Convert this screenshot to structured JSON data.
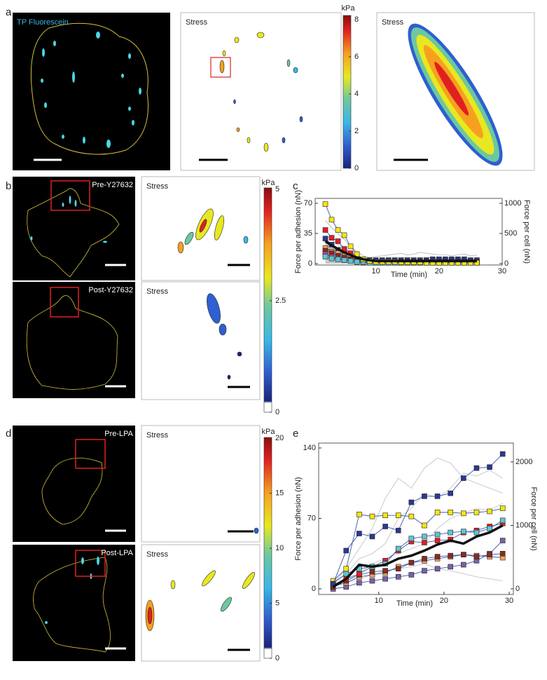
{
  "panels": {
    "labels": [
      "a",
      "b",
      "c",
      "d",
      "e"
    ],
    "a": {
      "image_label": "TP Fluorescein",
      "stress_labels": [
        "Stress",
        "Stress"
      ],
      "colorbar": {
        "unit": "kPa",
        "lim": [
          0,
          8
        ],
        "ticks": [
          0,
          2,
          4,
          6,
          8
        ]
      }
    },
    "b": {
      "image_labels": [
        "Pre-Y27632",
        "Post-Y27632"
      ],
      "stress_labels": [
        "Stress",
        "Stress"
      ],
      "colorbar": {
        "unit": "kPa",
        "lim": [
          0,
          5
        ],
        "ticks": [
          0,
          2.5,
          5
        ]
      }
    },
    "d": {
      "image_labels": [
        "Pre-LPA",
        "Post-LPA"
      ],
      "stress_labels": [
        "Stress",
        "Stress"
      ],
      "colorbar": {
        "unit": "kPa",
        "lim": [
          0,
          20
        ],
        "ticks": [
          0,
          5,
          10,
          15,
          20
        ]
      }
    }
  },
  "chart_data": [
    {
      "type": "line",
      "x_label": "Time (min)",
      "y_label": "Force per adhesion (nN)",
      "y2_label": "Force per cell (nN)",
      "x": [
        2,
        3,
        4,
        5,
        6,
        7,
        8,
        9,
        10,
        11,
        12,
        13,
        14,
        15,
        16,
        17,
        18,
        19,
        20,
        21,
        22,
        23,
        24,
        25,
        26
      ],
      "xlim": [
        0.5,
        30
      ],
      "xticks": [
        10,
        20,
        30
      ],
      "ylim": [
        0,
        70
      ],
      "yticks": [
        0,
        35,
        70
      ],
      "y2lim": [
        0,
        1000
      ],
      "y2ticks": [
        0,
        500,
        1000
      ],
      "line_color": "#3d55a8",
      "series": [
        {
          "style": "area",
          "axis": "y2",
          "color": "#c8c8c8",
          "values": [
            360,
            300,
            250,
            200,
            160,
            120,
            90,
            80,
            75,
            72,
            70,
            70,
            70,
            70,
            70,
            70,
            70,
            70,
            70,
            70,
            70,
            70,
            70,
            70,
            70
          ]
        },
        {
          "color": "#b8b8b8",
          "values": [
            50,
            42,
            35,
            28,
            20,
            14,
            9,
            7,
            8,
            9,
            10,
            11,
            12,
            10,
            11,
            13,
            12,
            11,
            10,
            10,
            9,
            10,
            11,
            9,
            10
          ]
        },
        {
          "color": "#b8b8b8",
          "values": [
            33,
            28,
            22,
            18,
            13,
            9,
            6,
            5,
            5,
            5,
            6,
            6,
            6,
            7,
            6,
            6,
            7,
            7,
            6,
            6,
            7,
            6,
            6,
            5,
            5
          ]
        },
        {
          "marker": "square",
          "color": "#2b3990",
          "values": [
            29,
            22,
            16,
            12,
            9,
            7,
            5,
            4,
            4,
            4,
            4,
            4,
            4,
            4,
            4,
            4,
            4,
            5,
            5,
            5,
            5,
            5,
            5,
            4,
            4
          ]
        },
        {
          "marker": "square",
          "color": "#e31e24",
          "values": [
            39,
            30,
            26,
            17,
            12,
            7,
            4,
            3,
            2,
            2,
            2,
            2,
            2,
            2,
            2,
            2,
            2,
            2,
            2,
            2,
            2,
            1.5,
            1.5,
            1.5,
            1.5
          ]
        },
        {
          "marker": "square",
          "color": "#f7a35c",
          "values": [
            18,
            14,
            12,
            9,
            7,
            5,
            3,
            2,
            2,
            2,
            2,
            2,
            2,
            2,
            2,
            2,
            2,
            2,
            2,
            2,
            2,
            2,
            2,
            2,
            2
          ]
        },
        {
          "marker": "square",
          "color": "#8b2b1e",
          "values": [
            15,
            12,
            9,
            7,
            5,
            4,
            3,
            2,
            2,
            2,
            2,
            2,
            2,
            2,
            2,
            2,
            2,
            2,
            2,
            2,
            2,
            2,
            2,
            2,
            2
          ]
        },
        {
          "marker": "square",
          "color": "#c2449a",
          "values": [
            11,
            8,
            6,
            4,
            3,
            2,
            1,
            1,
            1,
            1,
            1,
            1,
            1,
            1,
            1,
            1,
            1,
            1,
            1,
            1,
            1,
            1,
            1,
            1,
            1
          ]
        },
        {
          "marker": "square",
          "color": "#5cc6d0",
          "values": [
            8,
            6,
            5,
            4,
            3,
            2,
            2,
            1,
            1,
            1,
            1,
            1,
            1,
            1,
            1,
            1,
            1,
            1,
            1,
            1,
            1,
            1,
            1,
            1,
            1
          ]
        },
        {
          "marker": "square",
          "color": "#f5e50f",
          "values": [
            69,
            51,
            39,
            33,
            20,
            11,
            5,
            3,
            2,
            2,
            2,
            2,
            1.5,
            1.5,
            1.5,
            1.5,
            1,
            1,
            1,
            1,
            1,
            1,
            1,
            1,
            1
          ]
        },
        {
          "color": "#111111",
          "line_width": 3.5,
          "values": [
            26,
            21,
            17,
            13,
            10,
            7,
            5,
            4,
            3,
            3,
            3,
            3,
            3,
            3,
            3,
            3,
            3,
            3,
            3,
            3,
            3,
            3,
            3,
            3,
            3
          ]
        }
      ]
    },
    {
      "type": "line",
      "x_label": "Time (min)",
      "y_label": "Force per adhesion (nN)",
      "y2_label": "Force per cell (nN)",
      "x": [
        3,
        5,
        7,
        9,
        11,
        13,
        15,
        17,
        19,
        21,
        23,
        25,
        27,
        29
      ],
      "xlim": [
        1,
        30
      ],
      "xticks": [
        10,
        20,
        30
      ],
      "ylim": [
        0,
        140
      ],
      "yticks": [
        0,
        70,
        140
      ],
      "y2lim": [
        0,
        2220
      ],
      "y2ticks": [
        0,
        1000,
        2000
      ],
      "line_color": "#3d55a8",
      "series": [
        {
          "color": "#c4c4c4",
          "values": [
            5,
            20,
            40,
            60,
            90,
            110,
            100,
            120,
            130,
            125,
            110,
            105,
            100,
            95
          ]
        },
        {
          "color": "#c4c4c4",
          "values": [
            4,
            15,
            30,
            35,
            45,
            70,
            80,
            95,
            90,
            100,
            115,
            112,
            118,
            110
          ]
        },
        {
          "color": "#c4c4c4",
          "values": [
            2,
            6,
            10,
            14,
            18,
            20,
            22,
            25,
            20,
            18,
            15,
            12,
            10,
            8
          ]
        },
        {
          "color": "#c4c4c4",
          "values": [
            3,
            8,
            15,
            25,
            30,
            35,
            40,
            45,
            60,
            70,
            75,
            80,
            78,
            85
          ]
        },
        {
          "marker": "square",
          "color": "#7b5fa8",
          "values": [
            0,
            2,
            6,
            8,
            10,
            12,
            14,
            18,
            20,
            22,
            24,
            28,
            35,
            48
          ]
        },
        {
          "marker": "square",
          "color": "#f7a35c",
          "values": [
            3,
            6,
            12,
            14,
            16,
            22,
            26,
            28,
            30,
            32,
            34,
            33,
            32,
            31
          ]
        },
        {
          "marker": "square",
          "color": "#8b2b1e",
          "values": [
            2,
            8,
            14,
            17,
            18,
            20,
            26,
            30,
            32,
            33,
            34,
            32,
            34,
            35
          ]
        },
        {
          "marker": "square",
          "color": "#e31e24",
          "values": [
            4,
            10,
            15,
            22,
            28,
            38,
            47,
            46,
            48,
            49,
            56,
            58,
            62,
            65
          ]
        },
        {
          "marker": "square",
          "color": "#5cc6d0",
          "values": [
            6,
            15,
            20,
            22,
            25,
            40,
            50,
            52,
            54,
            56,
            57,
            56,
            60,
            68
          ]
        },
        {
          "marker": "square",
          "color": "#f5e50f",
          "values": [
            8,
            20,
            74,
            72,
            73,
            73,
            72,
            63,
            76,
            76,
            75,
            76,
            77,
            80
          ]
        },
        {
          "marker": "square",
          "color": "#2b3990",
          "values": [
            5,
            38,
            55,
            52,
            62,
            58,
            86,
            92,
            92,
            95,
            110,
            120,
            121,
            134
          ]
        },
        {
          "color": "#111111",
          "line_width": 3.5,
          "values": [
            2,
            10,
            24,
            22,
            24,
            30,
            33,
            38,
            44,
            48,
            45,
            52,
            56,
            63
          ]
        }
      ]
    }
  ]
}
